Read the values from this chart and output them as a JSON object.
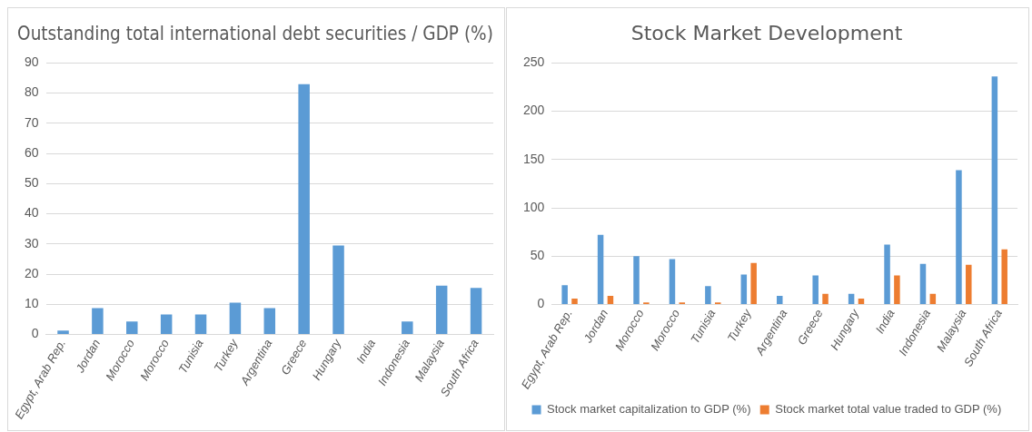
{
  "chart_data": [
    {
      "type": "bar",
      "title": "Outstanding total international debt securities / GDP (%)",
      "categories": [
        "Egypt, Arab Rep.",
        "Jordan",
        "Morocco",
        "Morocco",
        "Tunisia",
        "Turkey",
        "Argentina",
        "Greece",
        "Hungary",
        "India",
        "Indonesia",
        "Malaysia",
        "South Africa"
      ],
      "series": [
        {
          "color": "#5b9bd5",
          "values": [
            1.3,
            8.7,
            4.3,
            6.6,
            6.6,
            10.5,
            8.7,
            83,
            29.5,
            null,
            4.3,
            16.2,
            15.4
          ]
        }
      ],
      "ylim": [
        0,
        90
      ],
      "yticks": [
        0,
        10,
        20,
        30,
        40,
        50,
        60,
        70,
        80,
        90
      ],
      "grid": "y"
    },
    {
      "type": "bar",
      "title": "Stock Market Development",
      "categories": [
        "Egypt, Arab Rep.",
        "Jordan",
        "Morocco",
        "Morocco",
        "Tunisia",
        "Turkey",
        "Argentina",
        "Greece",
        "Hungary",
        "India",
        "Indonesia",
        "Malaysia",
        "South Africa"
      ],
      "series": [
        {
          "name": "Stock market capitalization to GDP (%)",
          "color": "#5b9bd5",
          "values": [
            20,
            72,
            50,
            47,
            19,
            31,
            9,
            30,
            11,
            62,
            42,
            139,
            236
          ]
        },
        {
          "name": "Stock market total value traded to GDP (%)",
          "color": "#ed7d31",
          "values": [
            6,
            9,
            2,
            2,
            2,
            43,
            null,
            11,
            6,
            30,
            11,
            41,
            57
          ]
        }
      ],
      "ylim": [
        0,
        250
      ],
      "yticks": [
        0,
        50,
        100,
        150,
        200,
        250
      ],
      "grid": "y",
      "legend": "bottom"
    }
  ]
}
